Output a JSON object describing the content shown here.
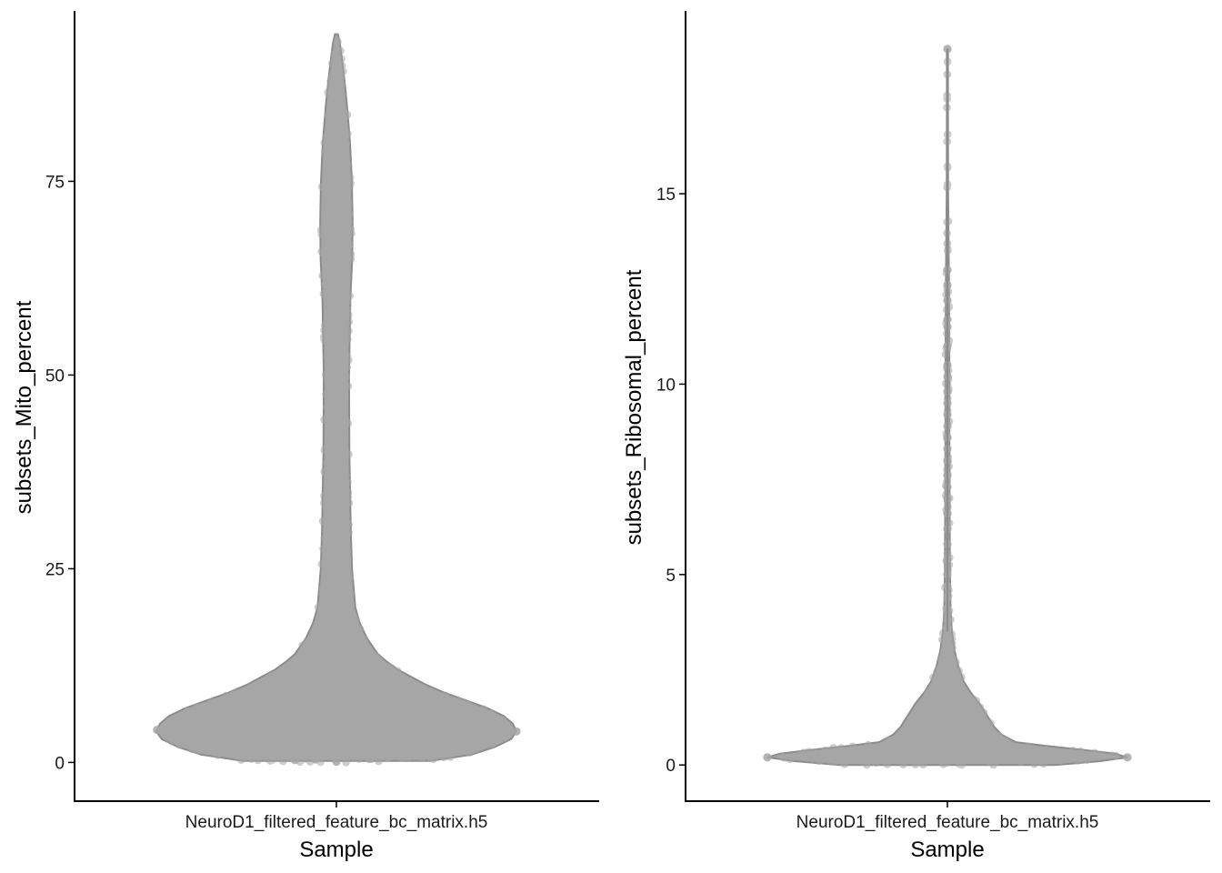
{
  "chart_data": [
    {
      "type": "violin",
      "title": "",
      "xlabel": "Sample",
      "ylabel": "subsets_Mito_percent",
      "categories": [
        "NeuroD1_filtered_feature_bc_matrix.h5"
      ],
      "ylim": [
        -5,
        97
      ],
      "yticks": [
        0,
        25,
        50,
        75
      ],
      "ytick_labels": [
        "0",
        "25",
        "50",
        "75"
      ],
      "grid": false,
      "legend": "none",
      "summary": {
        "min": 0,
        "max": 94
      },
      "density_profile": [
        {
          "y": 0.2,
          "w": 0.52
        },
        {
          "y": 1,
          "w": 0.75
        },
        {
          "y": 2,
          "w": 0.88
        },
        {
          "y": 3,
          "w": 0.97
        },
        {
          "y": 4,
          "w": 1.0
        },
        {
          "y": 5,
          "w": 0.98
        },
        {
          "y": 6,
          "w": 0.93
        },
        {
          "y": 7,
          "w": 0.84
        },
        {
          "y": 8,
          "w": 0.72
        },
        {
          "y": 9,
          "w": 0.6
        },
        {
          "y": 10,
          "w": 0.5
        },
        {
          "y": 11,
          "w": 0.42
        },
        {
          "y": 12,
          "w": 0.34
        },
        {
          "y": 13,
          "w": 0.28
        },
        {
          "y": 14,
          "w": 0.23
        },
        {
          "y": 16,
          "w": 0.17
        },
        {
          "y": 18,
          "w": 0.13
        },
        {
          "y": 20,
          "w": 0.105
        },
        {
          "y": 25,
          "w": 0.087
        },
        {
          "y": 30,
          "w": 0.08
        },
        {
          "y": 40,
          "w": 0.072
        },
        {
          "y": 50,
          "w": 0.07
        },
        {
          "y": 60,
          "w": 0.078
        },
        {
          "y": 65,
          "w": 0.088
        },
        {
          "y": 70,
          "w": 0.09
        },
        {
          "y": 75,
          "w": 0.086
        },
        {
          "y": 80,
          "w": 0.076
        },
        {
          "y": 85,
          "w": 0.058
        },
        {
          "y": 88,
          "w": 0.045
        },
        {
          "y": 91,
          "w": 0.03
        },
        {
          "y": 93,
          "w": 0.018
        },
        {
          "y": 94,
          "w": 0.008
        }
      ],
      "jitter_points": [
        {
          "y": 0.1,
          "dx": 0.0
        },
        {
          "y": 0.3,
          "dx": -0.42
        },
        {
          "y": 0.5,
          "dx": 0.31
        },
        {
          "y": 0.4,
          "dx": -0.2
        },
        {
          "y": 0.6,
          "dx": 0.45
        },
        {
          "y": 1.2,
          "dx": -0.62
        },
        {
          "y": 1.0,
          "dx": 0.58
        },
        {
          "y": 2.5,
          "dx": -0.85
        },
        {
          "y": 4.2,
          "dx": -1.0
        },
        {
          "y": 4.0,
          "dx": 1.0
        }
      ],
      "colors": {
        "points": "#a6a6a6",
        "outline": "#8c8c8c"
      }
    },
    {
      "type": "violin",
      "title": "",
      "xlabel": "Sample",
      "ylabel": "subsets_Ribosomal_percent",
      "categories": [
        "NeuroD1_filtered_feature_bc_matrix.h5"
      ],
      "ylim": [
        -0.95,
        19.8
      ],
      "yticks": [
        0,
        5,
        10,
        15
      ],
      "ytick_labels": [
        "0",
        "5",
        "10",
        "15"
      ],
      "grid": false,
      "legend": "none",
      "summary": {
        "min": 0,
        "max": 18.8
      },
      "density_profile": [
        {
          "y": 0.0,
          "w": 0.6
        },
        {
          "y": 0.1,
          "w": 0.85
        },
        {
          "y": 0.2,
          "w": 1.0
        },
        {
          "y": 0.3,
          "w": 0.93
        },
        {
          "y": 0.4,
          "w": 0.75
        },
        {
          "y": 0.5,
          "w": 0.55
        },
        {
          "y": 0.6,
          "w": 0.38
        },
        {
          "y": 0.8,
          "w": 0.3
        },
        {
          "y": 1.0,
          "w": 0.26
        },
        {
          "y": 1.3,
          "w": 0.22
        },
        {
          "y": 1.6,
          "w": 0.18
        },
        {
          "y": 1.9,
          "w": 0.13
        },
        {
          "y": 2.2,
          "w": 0.09
        },
        {
          "y": 2.6,
          "w": 0.06
        },
        {
          "y": 3.0,
          "w": 0.04
        },
        {
          "y": 3.5,
          "w": 0.025
        },
        {
          "y": 4.0,
          "w": 0.018
        },
        {
          "y": 5.0,
          "w": 0.014
        },
        {
          "y": 7.0,
          "w": 0.012
        },
        {
          "y": 9.0,
          "w": 0.011
        },
        {
          "y": 10.0,
          "w": 0.011
        },
        {
          "y": 11.5,
          "w": 0.01
        },
        {
          "y": 13.0,
          "w": 0.008
        },
        {
          "y": 15.0,
          "w": 0.004
        },
        {
          "y": 17.0,
          "w": 0.003
        },
        {
          "y": 18.8,
          "w": 0.003
        }
      ],
      "jitter_points": [
        {
          "y": 18.8,
          "dx": 0.0
        },
        {
          "y": 13.0,
          "dx": 0.0
        },
        {
          "y": 12.6,
          "dx": 0.0
        },
        {
          "y": 12.2,
          "dx": 0.0
        },
        {
          "y": 11.7,
          "dx": 0.0
        },
        {
          "y": 11.5,
          "dx": 0.0
        },
        {
          "y": 11.0,
          "dx": 0.0
        },
        {
          "y": 10.5,
          "dx": 0.0
        },
        {
          "y": 10.2,
          "dx": 0.0
        },
        {
          "y": 9.8,
          "dx": 0.0
        },
        {
          "y": 9.5,
          "dx": 0.0
        },
        {
          "y": 9.2,
          "dx": 0.0
        },
        {
          "y": 8.9,
          "dx": 0.0
        },
        {
          "y": 8.6,
          "dx": 0.0
        },
        {
          "y": 8.3,
          "dx": 0.0
        },
        {
          "y": 8.0,
          "dx": 0.0
        },
        {
          "y": 7.6,
          "dx": 0.0
        },
        {
          "y": 7.3,
          "dx": 0.0
        },
        {
          "y": 7.0,
          "dx": 0.0
        },
        {
          "y": 6.6,
          "dx": 0.0
        },
        {
          "y": 6.2,
          "dx": 0.0
        },
        {
          "y": 5.8,
          "dx": 0.0
        },
        {
          "y": 5.4,
          "dx": 0.0
        },
        {
          "y": 5.0,
          "dx": 0.0
        },
        {
          "y": 4.7,
          "dx": 0.0
        },
        {
          "y": 4.4,
          "dx": 0.0
        },
        {
          "y": 4.1,
          "dx": 0.0
        },
        {
          "y": 3.8,
          "dx": 0.0
        },
        {
          "y": 3.6,
          "dx": 0.0
        },
        {
          "y": 0.2,
          "dx": -1.0
        },
        {
          "y": 0.2,
          "dx": 1.0
        }
      ],
      "colors": {
        "points": "#a6a6a6",
        "outline": "#8c8c8c"
      }
    }
  ]
}
